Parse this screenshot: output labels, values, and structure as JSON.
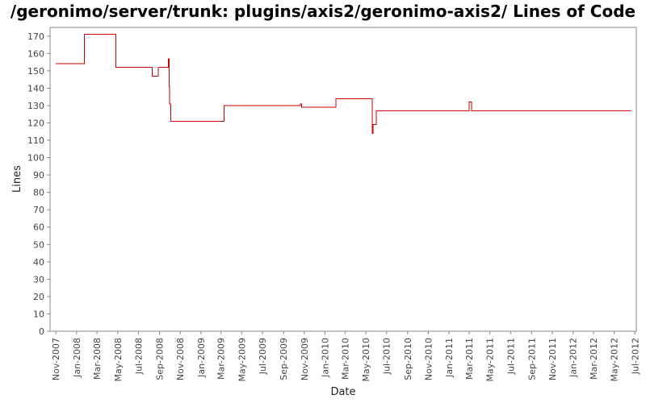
{
  "chart_data": {
    "type": "line",
    "title": "/geronimo/server/trunk: plugins/axis2/geronimo-axis2/ Lines of Code",
    "xlabel": "Date",
    "ylabel": "Lines",
    "ylim": [
      0,
      175
    ],
    "xlim": [
      "2007-10-15",
      "2012-07-05"
    ],
    "grid": false,
    "line_color": "#cc0000",
    "y_ticks": [
      0,
      10,
      20,
      30,
      40,
      50,
      60,
      70,
      80,
      90,
      100,
      110,
      120,
      130,
      140,
      150,
      160,
      170
    ],
    "x_ticks": [
      {
        "date": "2007-11-01",
        "label": "Nov-2007"
      },
      {
        "date": "2008-01-01",
        "label": "Jan-2008"
      },
      {
        "date": "2008-03-01",
        "label": "Mar-2008"
      },
      {
        "date": "2008-05-01",
        "label": "May-2008"
      },
      {
        "date": "2008-07-01",
        "label": "Jul-2008"
      },
      {
        "date": "2008-09-01",
        "label": "Sep-2008"
      },
      {
        "date": "2008-11-01",
        "label": "Nov-2008"
      },
      {
        "date": "2009-01-01",
        "label": "Jan-2009"
      },
      {
        "date": "2009-03-01",
        "label": "Mar-2009"
      },
      {
        "date": "2009-05-01",
        "label": "May-2009"
      },
      {
        "date": "2009-07-01",
        "label": "Jul-2009"
      },
      {
        "date": "2009-09-01",
        "label": "Sep-2009"
      },
      {
        "date": "2009-11-01",
        "label": "Nov-2009"
      },
      {
        "date": "2010-01-01",
        "label": "Jan-2010"
      },
      {
        "date": "2010-03-01",
        "label": "Mar-2010"
      },
      {
        "date": "2010-05-01",
        "label": "May-2010"
      },
      {
        "date": "2010-07-01",
        "label": "Jul-2010"
      },
      {
        "date": "2010-09-01",
        "label": "Sep-2010"
      },
      {
        "date": "2010-11-01",
        "label": "Nov-2010"
      },
      {
        "date": "2011-01-01",
        "label": "Jan-2011"
      },
      {
        "date": "2011-03-01",
        "label": "Mar-2011"
      },
      {
        "date": "2011-05-01",
        "label": "May-2011"
      },
      {
        "date": "2011-07-01",
        "label": "Jul-2011"
      },
      {
        "date": "2011-09-01",
        "label": "Sep-2011"
      },
      {
        "date": "2011-11-01",
        "label": "Nov-2011"
      },
      {
        "date": "2012-01-01",
        "label": "Jan-2012"
      },
      {
        "date": "2012-03-01",
        "label": "Mar-2012"
      },
      {
        "date": "2012-05-01",
        "label": "May-2012"
      },
      {
        "date": "2012-07-01",
        "label": "Jul-2012"
      }
    ],
    "series": [
      {
        "step": true,
        "points": [
          {
            "x": "2007-11-01",
            "y": 154
          },
          {
            "x": "2008-01-24",
            "y": 171
          },
          {
            "x": "2008-04-26",
            "y": 152
          },
          {
            "x": "2008-08-11",
            "y": 147
          },
          {
            "x": "2008-08-28",
            "y": 152
          },
          {
            "x": "2008-09-27",
            "y": 157
          },
          {
            "x": "2008-09-29",
            "y": 141
          },
          {
            "x": "2008-10-01",
            "y": 131
          },
          {
            "x": "2008-10-04",
            "y": 121
          },
          {
            "x": "2009-03-10",
            "y": 130
          },
          {
            "x": "2009-10-20",
            "y": 131
          },
          {
            "x": "2009-10-24",
            "y": 129
          },
          {
            "x": "2010-02-02",
            "y": 134
          },
          {
            "x": "2010-05-20",
            "y": 114
          },
          {
            "x": "2010-05-22",
            "y": 119
          },
          {
            "x": "2010-06-01",
            "y": 127
          },
          {
            "x": "2011-03-01",
            "y": 132
          },
          {
            "x": "2011-03-08",
            "y": 127
          },
          {
            "x": "2012-06-20",
            "y": 127
          }
        ]
      }
    ]
  }
}
